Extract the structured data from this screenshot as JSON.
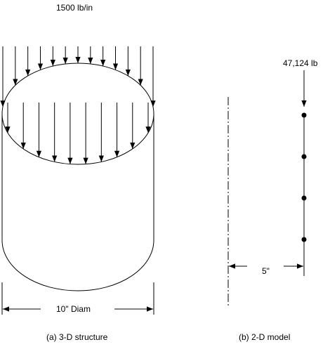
{
  "labels": {
    "load_per_inch": "1500 lb/in",
    "point_load": "47,124 lb",
    "offset": "5\"",
    "diameter": "10\" Diam",
    "caption_3d": "(a) 3-D structure",
    "caption_2d": "(b) 2-D model"
  },
  "colors": {
    "line": "#000000",
    "background": "#ffffff"
  },
  "model_nodes": 4,
  "distributed_load_arrows": {
    "outer_back": 13,
    "inner_front": 10
  }
}
